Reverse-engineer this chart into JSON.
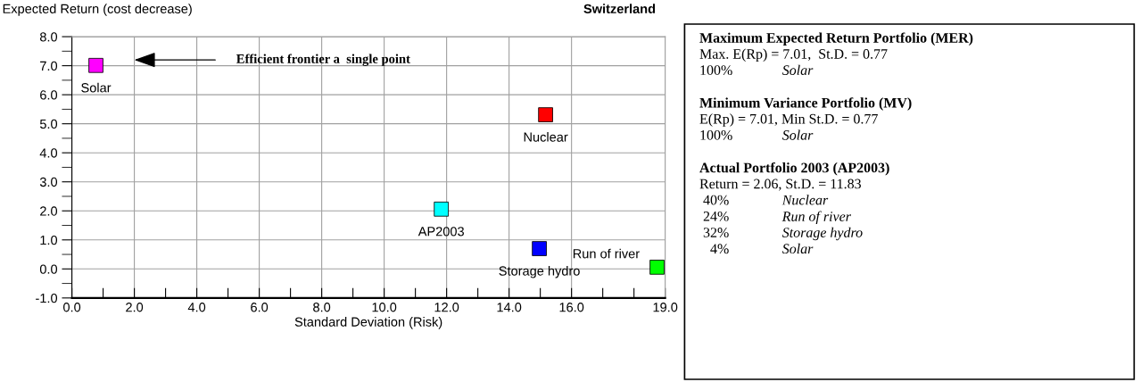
{
  "chart_data": {
    "type": "scatter",
    "title": "Switzerland",
    "xlabel": "Standard Deviation (Risk)",
    "ylabel": "Expected Return (cost decrease)",
    "series": [
      {
        "x": [
          0.77,
          15.17,
          11.83,
          14.97,
          18.74
        ],
        "values": [
          7.01,
          5.31,
          2.06,
          0.7,
          0.06
        ],
        "colors": [
          "#ff00ff",
          "#ff0000",
          "#00ffff",
          "#0000ff",
          "#00ff00"
        ]
      }
    ],
    "marker": "square",
    "xlim": [
      0,
      19
    ],
    "xticks": [
      {
        "value": 0,
        "label": "0.0"
      },
      {
        "value": 1,
        "label": null
      },
      {
        "value": 2,
        "label": "2.0"
      },
      {
        "value": 3,
        "label": null
      },
      {
        "value": 4,
        "label": "4.0"
      },
      {
        "value": 5,
        "label": null
      },
      {
        "value": 6,
        "label": "6.0"
      },
      {
        "value": 7,
        "label": null
      },
      {
        "value": 8,
        "label": "8.0"
      },
      {
        "value": 9,
        "label": null
      },
      {
        "value": 10,
        "label": "10.0"
      },
      {
        "value": 11,
        "label": null
      },
      {
        "value": 12,
        "label": "12.0"
      },
      {
        "value": 13,
        "label": null
      },
      {
        "value": 14,
        "label": "14.0"
      },
      {
        "value": 15,
        "label": null
      },
      {
        "value": 16,
        "label": "16.0"
      },
      {
        "value": 17,
        "label": null
      },
      {
        "value": 18,
        "label": null
      },
      {
        "value": 19,
        "label": "19.0"
      }
    ],
    "ylim": [
      -1,
      8
    ],
    "yticks": [
      {
        "value": -1,
        "label": "-1.0"
      },
      {
        "value": 0,
        "label": "0.0"
      },
      {
        "value": 1,
        "label": "1.0"
      },
      {
        "value": 2,
        "label": "2.0"
      },
      {
        "value": 3,
        "label": "3.0"
      },
      {
        "value": 4,
        "label": "4.0"
      },
      {
        "value": 5,
        "label": "5.0"
      },
      {
        "value": 6,
        "label": "6.0"
      },
      {
        "value": 7,
        "label": "7.0"
      },
      {
        "value": 8,
        "label": "8.0"
      }
    ],
    "grid": true,
    "annotations": [
      {
        "text": "Solar",
        "x": 0.77,
        "y": 7.01
      },
      {
        "text": "Nuclear",
        "x": 15.17,
        "y": 5.31
      },
      {
        "text": "AP2003",
        "x": 11.83,
        "y": 2.06
      },
      {
        "text": "Storage hydro",
        "x": 14.97,
        "y": 0.7
      },
      {
        "text": "Run of river",
        "x": 18.74,
        "y": 0.06
      },
      "Efficient frontier a  single point",
      "Maximum Expected Return Portfolio (MER)",
      "Max. E(Rp) = 7.01,  St.D. = 0.77",
      "100%\tSolar",
      "Minimum Variance Portfolio (MV)",
      "E(Rp) = 7.01, Min St.D. = 0.77",
      "100%\tSolar",
      "Actual Portfolio 2003 (AP2003)",
      "Return = 2.06, St.D. = 11.83",
      " 40%\tNuclear",
      " 24%\tRun of river",
      " 32%\tStorage hydro",
      "   4%\tSolar"
    ]
  }
}
